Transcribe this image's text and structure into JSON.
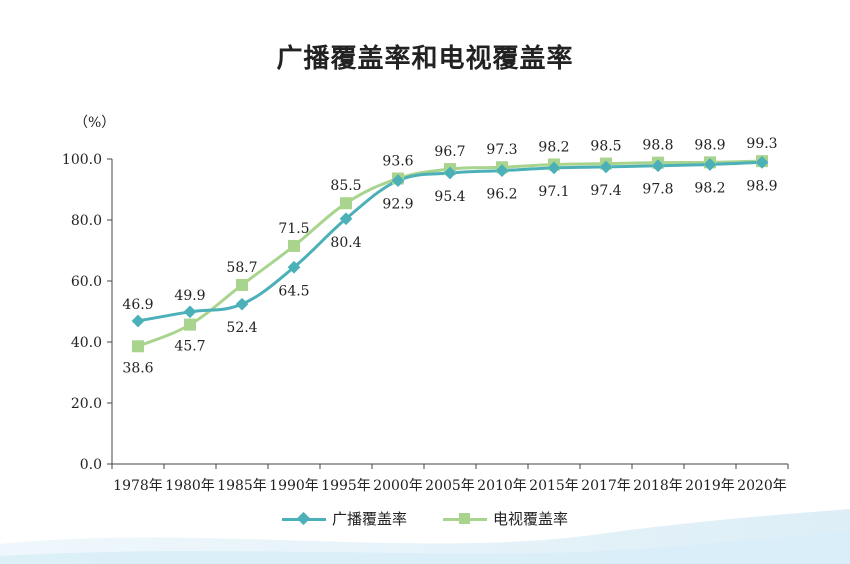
{
  "chart_data": {
    "type": "line",
    "title": "广播覆盖率和电视覆盖率",
    "unit_label": "（%）",
    "categories": [
      "1978年",
      "1980年",
      "1985年",
      "1990年",
      "1995年",
      "2000年",
      "2005年",
      "2010年",
      "2015年",
      "2017年",
      "2018年",
      "2019年",
      "2020年"
    ],
    "ylim": [
      0,
      100
    ],
    "yticks": [
      "0.0",
      "20.0",
      "40.0",
      "60.0",
      "80.0",
      "100.0"
    ],
    "grid": false,
    "legend_position": "bottom",
    "series": [
      {
        "name": "广播覆盖率",
        "color": "#4bb0b8",
        "marker": "diamond",
        "values": [
          46.9,
          49.9,
          52.4,
          64.5,
          80.4,
          92.9,
          95.4,
          96.2,
          97.1,
          97.4,
          97.8,
          98.2,
          98.9
        ],
        "labels": [
          "46.9",
          "49.9",
          "52.4",
          "64.5",
          "80.4",
          "92.9",
          "95.4",
          "96.2",
          "97.1",
          "97.4",
          "97.8",
          "98.2",
          "98.9"
        ]
      },
      {
        "name": "电视覆盖率",
        "color": "#a9d48e",
        "marker": "square",
        "values": [
          38.6,
          45.7,
          58.7,
          71.5,
          85.5,
          93.6,
          96.7,
          97.3,
          98.2,
          98.5,
          98.8,
          98.9,
          99.3
        ],
        "labels": [
          "38.6",
          "45.7",
          "58.7",
          "71.5",
          "85.5",
          "93.6",
          "96.7",
          "97.3",
          "98.2",
          "98.5",
          "98.8",
          "98.9",
          "99.3"
        ]
      }
    ]
  }
}
